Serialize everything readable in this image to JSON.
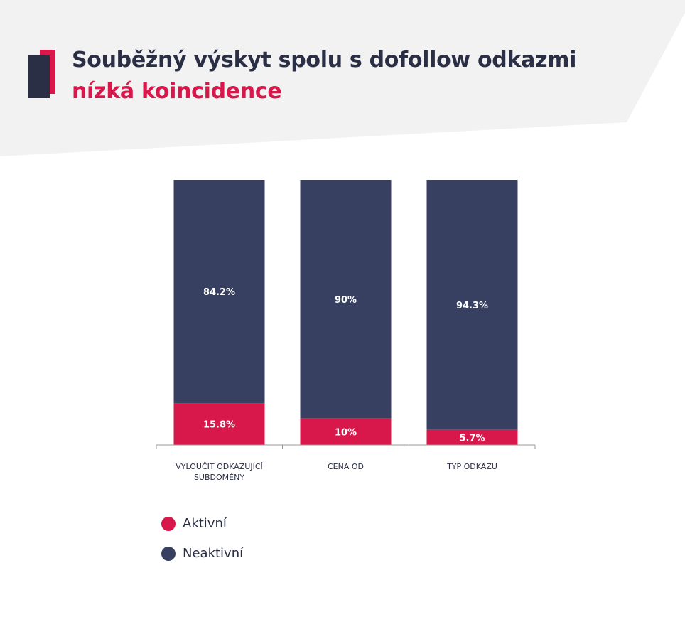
{
  "header": {
    "title": "Souběžný výskyt spolu s dofollow odkazmi",
    "subtitle": "nízká koincidence"
  },
  "colors": {
    "active": "#d8174a",
    "inactive": "#384062",
    "header_bg": "#f2f2f2",
    "title": "#2b2f45",
    "axis": "#9a9a9a",
    "label_text": "#2b2f45"
  },
  "chart_data": {
    "type": "bar",
    "stacked": true,
    "categories": [
      [
        "VYLOUČIT ODKAZUJÍCÍ",
        "SUBDOMÉNY"
      ],
      [
        "CENA OD"
      ],
      [
        "TYP ODKAZU"
      ]
    ],
    "series": [
      {
        "name": "Aktivní",
        "values": [
          15.8,
          10,
          5.7
        ],
        "labels": [
          "15.8%",
          "10%",
          "5.7%"
        ]
      },
      {
        "name": "Neaktivní",
        "values": [
          84.2,
          90,
          94.3
        ],
        "labels": [
          "84.2%",
          "90%",
          "94.3%"
        ]
      }
    ],
    "ylim": [
      0,
      100
    ],
    "grid": false,
    "legend_position": "bottom-left"
  },
  "legend": [
    {
      "label": "Aktivní"
    },
    {
      "label": "Neaktivní"
    }
  ]
}
